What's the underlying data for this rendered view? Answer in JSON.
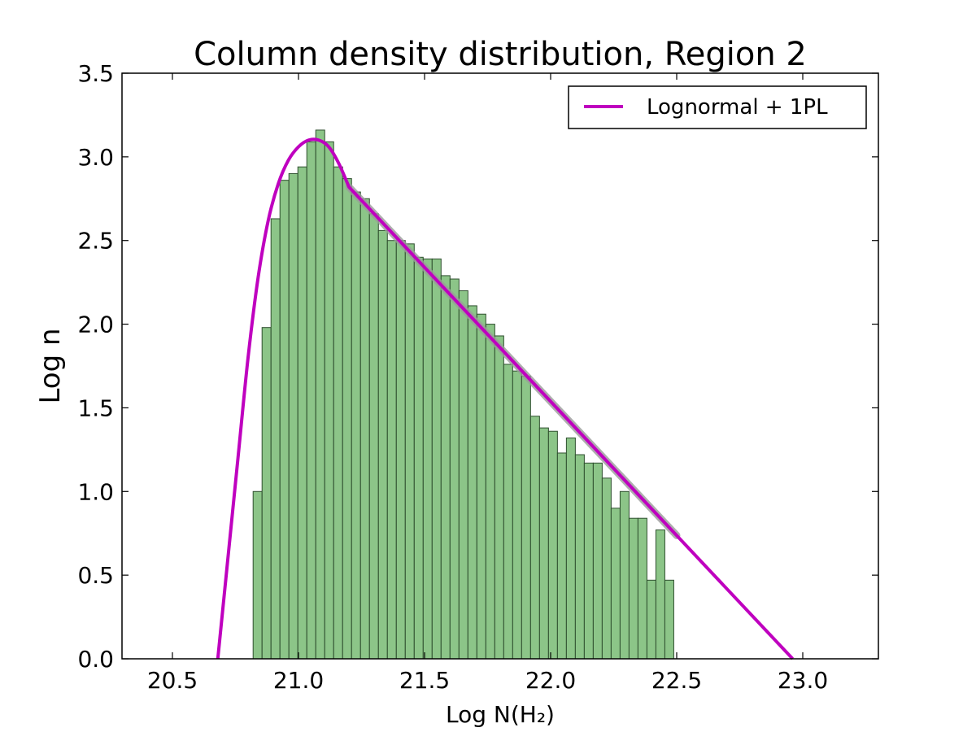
{
  "chart_data": {
    "type": "bar",
    "title": "Column density distribution, Region 2",
    "xlabel": "Log N(H₂)",
    "ylabel": "Log n",
    "xlim": [
      20.3,
      23.3
    ],
    "ylim": [
      0.0,
      3.5
    ],
    "xticks": [
      "20.5",
      "21.0",
      "21.5",
      "22.0",
      "22.5",
      "23.0"
    ],
    "yticks": [
      "0.0",
      "0.5",
      "1.0",
      "1.5",
      "2.0",
      "2.5",
      "3.0",
      "3.5"
    ],
    "grid": false,
    "legend_position": "top-right",
    "histogram": {
      "bin_start": 20.82,
      "bin_width": 0.0355,
      "values": [
        1.0,
        1.98,
        2.63,
        2.86,
        2.9,
        2.94,
        3.09,
        3.16,
        3.09,
        2.94,
        2.87,
        2.79,
        2.75,
        2.66,
        2.56,
        2.5,
        2.5,
        2.48,
        2.4,
        2.39,
        2.39,
        2.29,
        2.27,
        2.2,
        2.11,
        2.06,
        2.0,
        1.93,
        1.76,
        1.72,
        1.69,
        1.45,
        1.38,
        1.36,
        1.23,
        1.32,
        1.22,
        1.17,
        1.17,
        1.08,
        0.9,
        1.0,
        0.84,
        0.84,
        0.47,
        0.77,
        0.47
      ],
      "color": "#7fbf7b",
      "edge_color": "#2f4f2f"
    },
    "series": [
      {
        "name": "Lognormal + 1PL",
        "color": "#bf00bf",
        "x": [
          20.68,
          20.72,
          20.76,
          20.8,
          20.84,
          20.88,
          20.92,
          20.96,
          21.0,
          21.04,
          21.08,
          21.12,
          21.16,
          21.2,
          22.96
        ],
        "y": [
          0.0,
          0.6,
          1.2,
          1.8,
          2.28,
          2.62,
          2.84,
          2.98,
          3.06,
          3.1,
          3.1,
          3.06,
          2.96,
          2.82,
          0.0
        ]
      }
    ],
    "fit_band": {
      "x_start": 21.2,
      "x_end": 22.5,
      "color": "#9a9a9a"
    }
  }
}
